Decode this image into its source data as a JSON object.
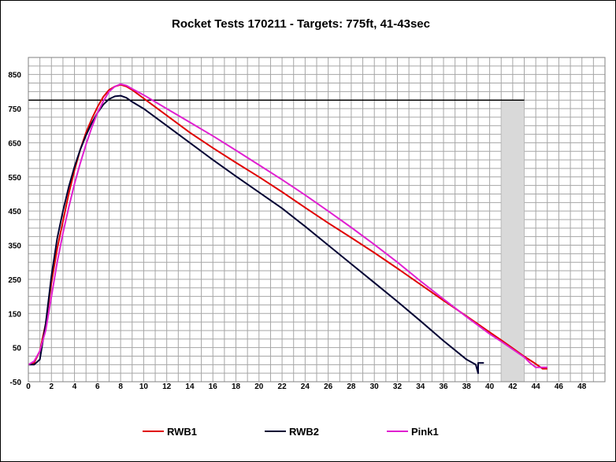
{
  "chart_data": {
    "type": "line",
    "title": "Rocket Tests 170211 - Targets: 775ft, 41-43sec",
    "xlabel": "",
    "ylabel": "",
    "xlim": [
      0,
      50
    ],
    "ylim": [
      -50,
      900
    ],
    "x_ticks": [
      0,
      2,
      4,
      6,
      8,
      10,
      12,
      14,
      16,
      18,
      20,
      22,
      24,
      26,
      28,
      30,
      32,
      34,
      36,
      38,
      40,
      42,
      44,
      46,
      48
    ],
    "y_ticks": [
      -50,
      50,
      150,
      250,
      350,
      450,
      550,
      650,
      750,
      850
    ],
    "grid": true,
    "legend_position": "bottom",
    "target_altitude": 775,
    "target_window": [
      41,
      43
    ],
    "target_window_color": "#d9d9d9",
    "series": [
      {
        "name": "RWB1",
        "color": "#e00000",
        "points": [
          [
            0,
            0
          ],
          [
            0.5,
            5
          ],
          [
            1,
            40
          ],
          [
            1.5,
            120
          ],
          [
            2,
            240
          ],
          [
            2.5,
            340
          ],
          [
            3,
            420
          ],
          [
            3.5,
            500
          ],
          [
            4,
            570
          ],
          [
            4.5,
            630
          ],
          [
            5,
            680
          ],
          [
            5.5,
            720
          ],
          [
            6,
            755
          ],
          [
            6.5,
            785
          ],
          [
            7,
            805
          ],
          [
            7.5,
            815
          ],
          [
            8,
            820
          ],
          [
            8.5,
            815
          ],
          [
            9,
            805
          ],
          [
            10,
            780
          ],
          [
            12,
            730
          ],
          [
            14,
            680
          ],
          [
            16,
            635
          ],
          [
            18,
            592
          ],
          [
            20,
            550
          ],
          [
            22,
            506
          ],
          [
            24,
            460
          ],
          [
            26,
            415
          ],
          [
            28,
            372
          ],
          [
            30,
            328
          ],
          [
            32,
            282
          ],
          [
            34,
            235
          ],
          [
            36,
            188
          ],
          [
            38,
            142
          ],
          [
            40,
            95
          ],
          [
            41,
            72
          ],
          [
            42,
            48
          ],
          [
            43,
            24
          ],
          [
            44,
            2
          ],
          [
            44.6,
            -12
          ],
          [
            45,
            -12
          ]
        ]
      },
      {
        "name": "RWB2",
        "color": "#000033",
        "points": [
          [
            0,
            0
          ],
          [
            0.5,
            0
          ],
          [
            1,
            15
          ],
          [
            1.5,
            120
          ],
          [
            2,
            260
          ],
          [
            2.5,
            370
          ],
          [
            3,
            450
          ],
          [
            3.5,
            520
          ],
          [
            4,
            580
          ],
          [
            4.5,
            630
          ],
          [
            5,
            672
          ],
          [
            5.5,
            708
          ],
          [
            6,
            738
          ],
          [
            6.5,
            762
          ],
          [
            7,
            778
          ],
          [
            7.5,
            786
          ],
          [
            8,
            788
          ],
          [
            8.5,
            782
          ],
          [
            9,
            770
          ],
          [
            10,
            750
          ],
          [
            12,
            700
          ],
          [
            14,
            650
          ],
          [
            16,
            600
          ],
          [
            18,
            552
          ],
          [
            20,
            505
          ],
          [
            22,
            458
          ],
          [
            24,
            405
          ],
          [
            26,
            350
          ],
          [
            28,
            295
          ],
          [
            30,
            240
          ],
          [
            32,
            185
          ],
          [
            34,
            128
          ],
          [
            36,
            70
          ],
          [
            38,
            15
          ],
          [
            38.8,
            0
          ],
          [
            39,
            -25
          ],
          [
            39,
            5
          ],
          [
            39.5,
            5
          ]
        ]
      },
      {
        "name": "Pink1",
        "color": "#e020d0",
        "points": [
          [
            0,
            0
          ],
          [
            0.5,
            10
          ],
          [
            1,
            40
          ],
          [
            1.5,
            100
          ],
          [
            2,
            200
          ],
          [
            2.5,
            300
          ],
          [
            3,
            385
          ],
          [
            3.5,
            460
          ],
          [
            4,
            530
          ],
          [
            4.5,
            590
          ],
          [
            5,
            645
          ],
          [
            5.5,
            695
          ],
          [
            6,
            738
          ],
          [
            6.5,
            772
          ],
          [
            7,
            800
          ],
          [
            7.5,
            815
          ],
          [
            8,
            822
          ],
          [
            8.5,
            818
          ],
          [
            9,
            808
          ],
          [
            10,
            790
          ],
          [
            12,
            750
          ],
          [
            14,
            710
          ],
          [
            16,
            670
          ],
          [
            18,
            628
          ],
          [
            20,
            585
          ],
          [
            22,
            542
          ],
          [
            24,
            497
          ],
          [
            26,
            450
          ],
          [
            28,
            402
          ],
          [
            30,
            352
          ],
          [
            32,
            300
          ],
          [
            34,
            245
          ],
          [
            36,
            192
          ],
          [
            38,
            140
          ],
          [
            40,
            90
          ],
          [
            41,
            68
          ],
          [
            42,
            45
          ],
          [
            43,
            22
          ],
          [
            43.5,
            5
          ],
          [
            44,
            -8
          ],
          [
            44.5,
            -8
          ],
          [
            45,
            -8
          ]
        ]
      }
    ]
  }
}
